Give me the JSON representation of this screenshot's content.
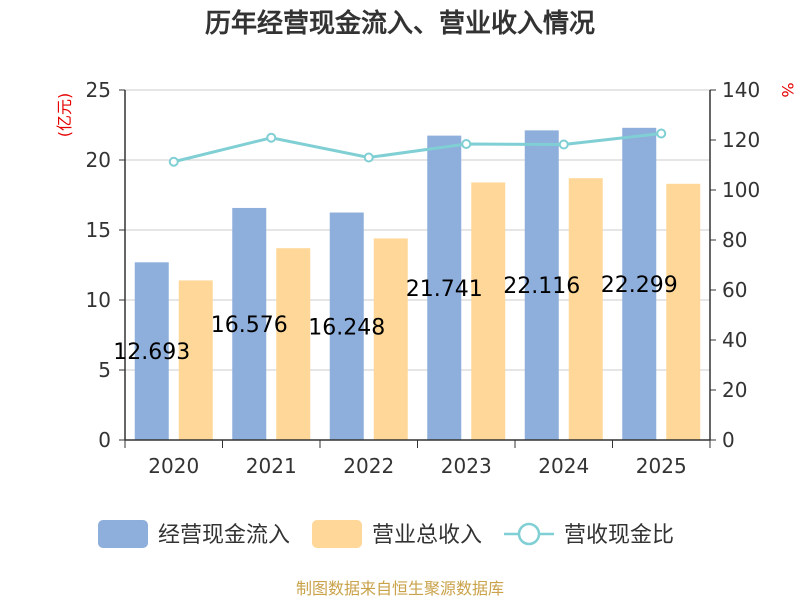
{
  "chart_data": {
    "type": "bar",
    "title": "历年经营现金流入、营业收入情况",
    "y_left_unit": "(亿元)",
    "y_right_unit": "%",
    "categories": [
      "2020",
      "2021",
      "2022",
      "2023",
      "2024",
      "2025"
    ],
    "y_left_ticks": [
      "0",
      "5",
      "10",
      "15",
      "20",
      "25"
    ],
    "y_right_ticks": [
      "0",
      "20",
      "40",
      "60",
      "80",
      "100",
      "120",
      "140"
    ],
    "y_left_range": [
      0,
      25
    ],
    "y_right_range": [
      0,
      140
    ],
    "grid": true,
    "legend_position": "bottom",
    "series": [
      {
        "name": "经营现金流入",
        "kind": "bar",
        "axis": "left",
        "color": "#8eaedb",
        "values": [
          12.693,
          16.576,
          16.248,
          21.741,
          22.116,
          22.299
        ],
        "labels": [
          "12.693",
          "16.576",
          "16.248",
          "21.741",
          "22.116",
          "22.299"
        ]
      },
      {
        "name": "营业总收入",
        "kind": "bar",
        "axis": "left",
        "color": "#ffd899",
        "values": [
          11.4,
          13.7,
          14.4,
          18.4,
          18.7,
          18.3
        ]
      },
      {
        "name": "营收现金比",
        "kind": "line",
        "axis": "right",
        "color": "#7fcfd4",
        "values": [
          111.3,
          120.9,
          113.0,
          118.4,
          118.2,
          122.6
        ]
      }
    ],
    "footer": "制图数据来自恒生聚源数据库"
  }
}
